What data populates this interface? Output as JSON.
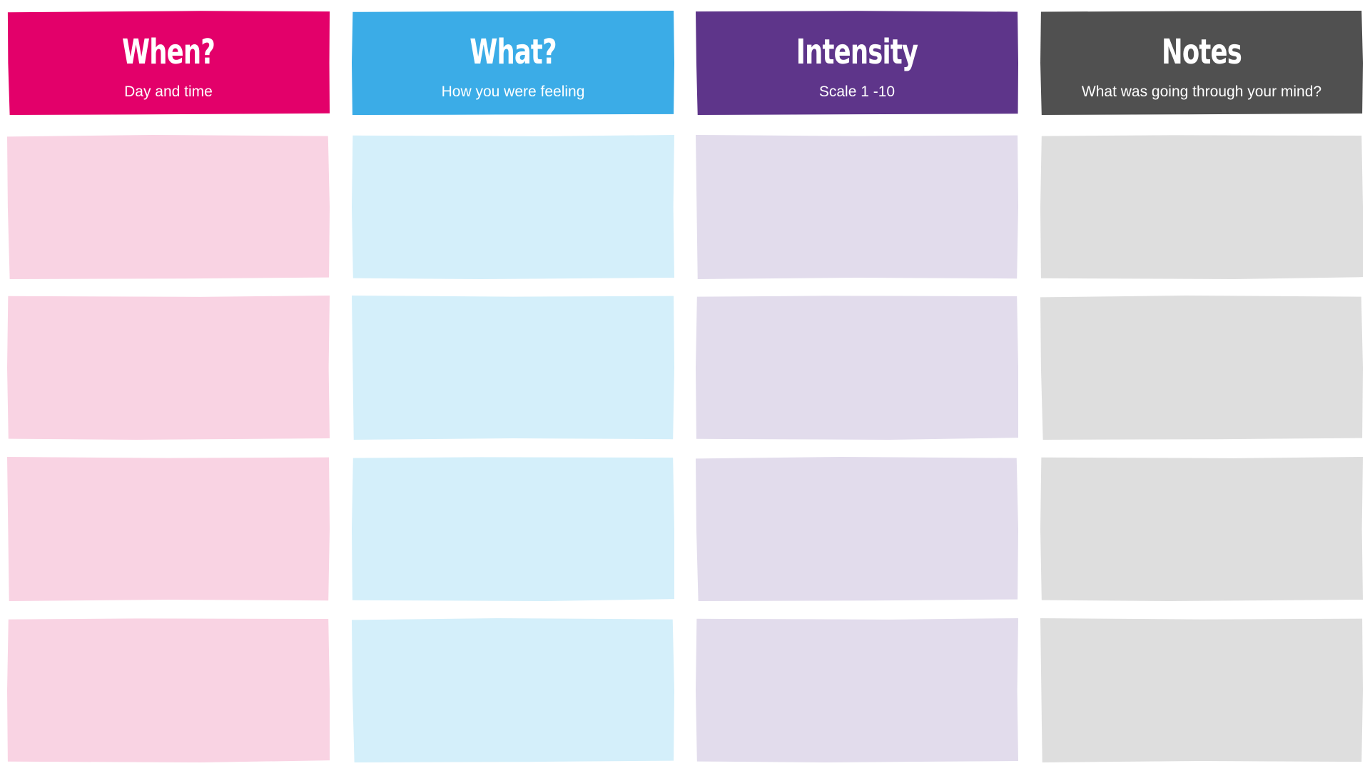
{
  "columns": [
    {
      "title": "When?",
      "subtitle": "Day and time",
      "header_color": "#E3006A",
      "cell_color": "#F9D3E3"
    },
    {
      "title": "What?",
      "subtitle": "How you were feeling",
      "header_color": "#3BACE7",
      "cell_color": "#D4EFFA"
    },
    {
      "title": "Intensity",
      "subtitle": "Scale 1 -10",
      "header_color": "#5E358A",
      "cell_color": "#E2DCEC"
    },
    {
      "title": "Notes",
      "subtitle": "What was going through your mind?",
      "header_color": "#505050",
      "cell_color": "#DEDEDE"
    }
  ],
  "rows": 4
}
